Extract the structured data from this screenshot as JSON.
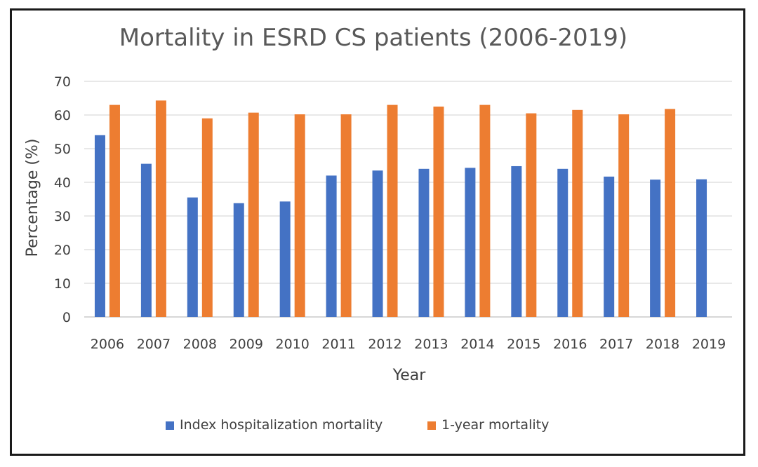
{
  "chart_data": {
    "type": "bar",
    "title": "Mortality in ESRD CS patients (2006-2019)",
    "xlabel": "Year",
    "ylabel": "Percentage (%)",
    "ylim": [
      0,
      70
    ],
    "yticks": [
      0,
      10,
      20,
      30,
      40,
      50,
      60,
      70
    ],
    "grid": true,
    "legend_position": "bottom",
    "categories": [
      "2006",
      "2007",
      "2008",
      "2009",
      "2010",
      "2011",
      "2012",
      "2013",
      "2014",
      "2015",
      "2016",
      "2017",
      "2018",
      "2019"
    ],
    "series": [
      {
        "name": "Index hospitalization mortality",
        "color": "#4472c4",
        "values": [
          54.0,
          45.5,
          35.5,
          33.8,
          34.3,
          42.0,
          43.5,
          44.0,
          44.3,
          44.8,
          44.0,
          41.7,
          40.8,
          40.9
        ]
      },
      {
        "name": "1-year mortality",
        "color": "#ed7d31",
        "values": [
          63.0,
          64.3,
          59.0,
          60.7,
          60.2,
          60.2,
          63.0,
          62.5,
          63.0,
          60.5,
          61.5,
          60.2,
          61.8,
          null
        ]
      }
    ],
    "gridline_color": "#d9d9d9"
  }
}
